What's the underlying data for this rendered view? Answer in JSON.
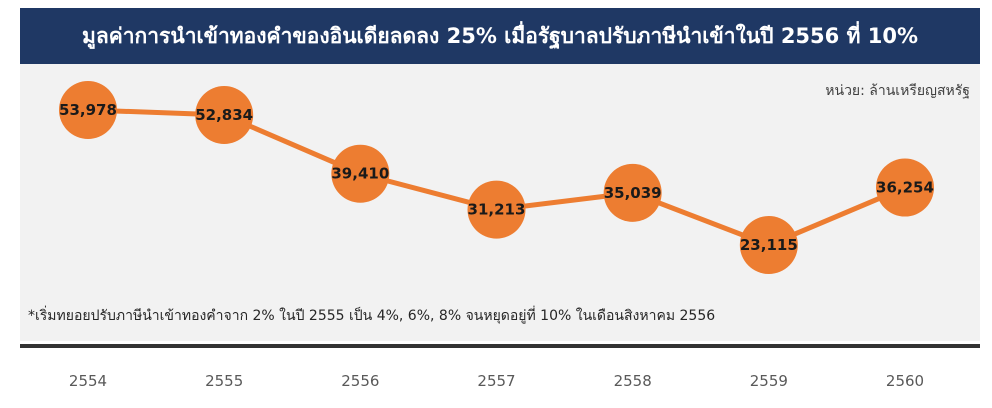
{
  "header": {
    "title": "มูลค่าการนำเข้าทองคำของอินเดียลดลง 25% เมื่อรัฐบาลปรับภาษีนำเข้าในปี 2556 ที่ 10%"
  },
  "unit_label": "หน่วย: ล้านเหรียญสหรัฐ",
  "footnote": "*เริ่มทยอยปรับภาษีนำเข้าทองคำจาก 2% ในปี 2555 เป็น 4%, 6%, 8% จนหยุดอยู่ที่ 10% ในเดือนสิงหาคม 2556",
  "colors": {
    "title_bg": "#1f3864",
    "panel_bg": "#f2f2f2",
    "series": "#ed7d31"
  },
  "chart_data": {
    "type": "line",
    "title": "มูลค่าการนำเข้าทองคำของอินเดียลดลง 25% เมื่อรัฐบาลปรับภาษีนำเข้าในปี 2556 ที่ 10%",
    "xlabel": "",
    "ylabel": "",
    "unit": "ล้านเหรียญสหรัฐ",
    "categories": [
      "2554",
      "2555",
      "2556",
      "2557",
      "2558",
      "2559",
      "2560"
    ],
    "series": [
      {
        "values": [
          53978,
          52834,
          39410,
          31213,
          35039,
          23115,
          36254
        ],
        "labels": [
          "53,978",
          "52,834",
          "39,410",
          "31,213",
          "35,039",
          "23,115",
          "36,254"
        ]
      }
    ],
    "ylim": [
      15000,
      58000
    ],
    "grid": false,
    "legend": "none",
    "marker": "large-circle",
    "data_labels": "inside-markers"
  }
}
